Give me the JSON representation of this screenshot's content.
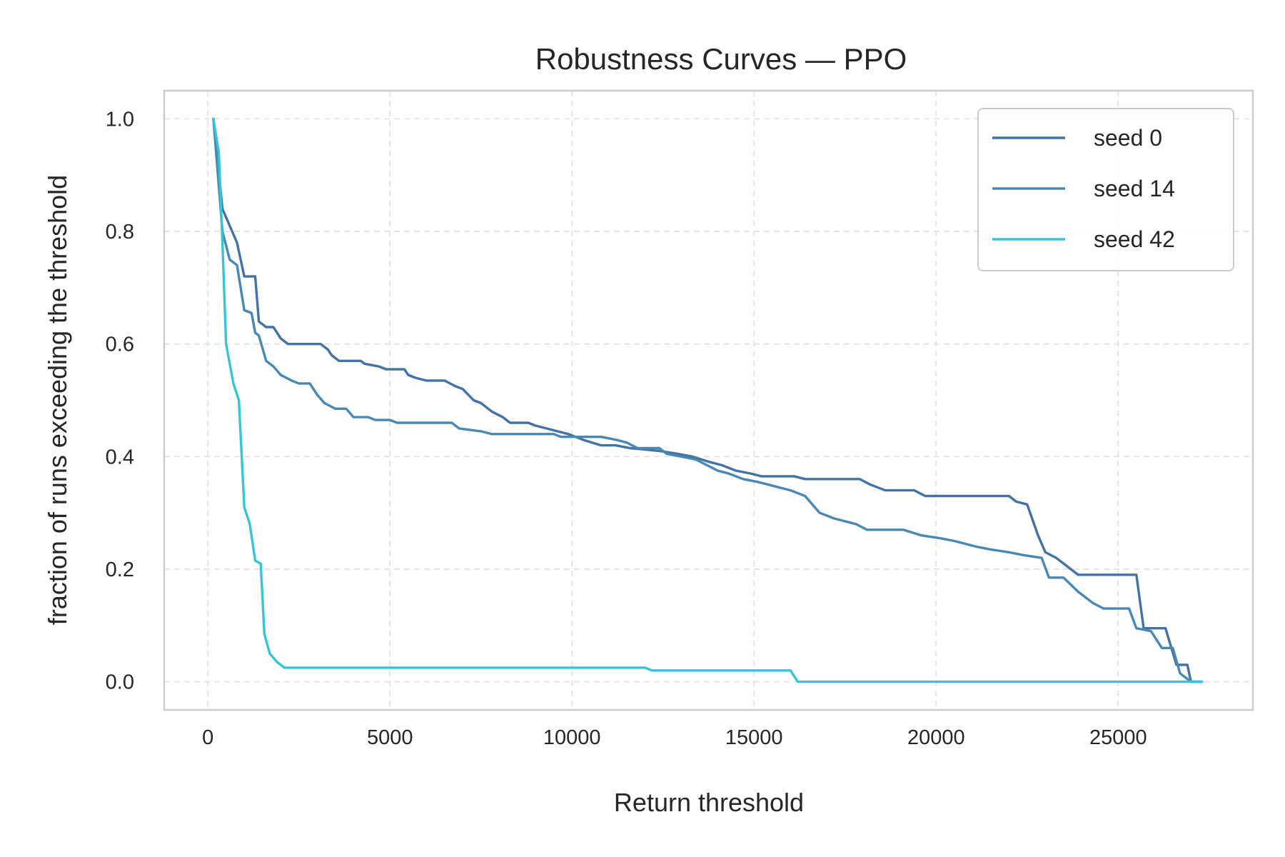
{
  "chart_data": {
    "type": "line",
    "title": "Robustness Curves — PPO",
    "xlabel": "Return threshold",
    "ylabel": "fraction of runs exceeding the threshold",
    "xlim": [
      -1200,
      28700
    ],
    "ylim": [
      -0.05,
      1.05
    ],
    "xticks": [
      0,
      5000,
      10000,
      15000,
      20000,
      25000
    ],
    "xtick_labels": [
      "0",
      "5000",
      "10000",
      "15000",
      "20000",
      "25000"
    ],
    "yticks": [
      0.0,
      0.2,
      0.4,
      0.6,
      0.8,
      1.0
    ],
    "ytick_labels": [
      "0.0",
      "0.2",
      "0.4",
      "0.6",
      "0.8",
      "1.0"
    ],
    "grid": true,
    "legend_position": "top-right",
    "series": [
      {
        "name": "seed 0",
        "color": "#4372a4",
        "points": [
          [
            150,
            1.0
          ],
          [
            400,
            0.84
          ],
          [
            800,
            0.78
          ],
          [
            1000,
            0.72
          ],
          [
            1300,
            0.72
          ],
          [
            1400,
            0.64
          ],
          [
            1600,
            0.63
          ],
          [
            1800,
            0.63
          ],
          [
            2000,
            0.61
          ],
          [
            2200,
            0.6
          ],
          [
            2800,
            0.6
          ],
          [
            3100,
            0.6
          ],
          [
            3300,
            0.59
          ],
          [
            3400,
            0.58
          ],
          [
            3600,
            0.57
          ],
          [
            4200,
            0.57
          ],
          [
            4300,
            0.565
          ],
          [
            4700,
            0.56
          ],
          [
            4900,
            0.555
          ],
          [
            5400,
            0.555
          ],
          [
            5500,
            0.545
          ],
          [
            5700,
            0.54
          ],
          [
            6000,
            0.535
          ],
          [
            6500,
            0.535
          ],
          [
            6800,
            0.525
          ],
          [
            7000,
            0.52
          ],
          [
            7300,
            0.5
          ],
          [
            7500,
            0.495
          ],
          [
            7800,
            0.48
          ],
          [
            8100,
            0.47
          ],
          [
            8300,
            0.46
          ],
          [
            8800,
            0.46
          ],
          [
            9000,
            0.455
          ],
          [
            9300,
            0.45
          ],
          [
            9600,
            0.445
          ],
          [
            9900,
            0.44
          ],
          [
            10300,
            0.43
          ],
          [
            10800,
            0.42
          ],
          [
            11200,
            0.42
          ],
          [
            11600,
            0.415
          ],
          [
            12400,
            0.41
          ],
          [
            12900,
            0.405
          ],
          [
            13300,
            0.4
          ],
          [
            13800,
            0.39
          ],
          [
            14100,
            0.385
          ],
          [
            14500,
            0.375
          ],
          [
            14900,
            0.37
          ],
          [
            15200,
            0.365
          ],
          [
            16100,
            0.365
          ],
          [
            16400,
            0.36
          ],
          [
            17900,
            0.36
          ],
          [
            18200,
            0.35
          ],
          [
            18600,
            0.34
          ],
          [
            19400,
            0.34
          ],
          [
            19700,
            0.33
          ],
          [
            22000,
            0.33
          ],
          [
            22200,
            0.32
          ],
          [
            22500,
            0.315
          ],
          [
            22800,
            0.26
          ],
          [
            23000,
            0.23
          ],
          [
            23300,
            0.22
          ],
          [
            23600,
            0.205
          ],
          [
            23900,
            0.19
          ],
          [
            25500,
            0.19
          ],
          [
            25700,
            0.095
          ],
          [
            26300,
            0.095
          ],
          [
            26600,
            0.03
          ],
          [
            26900,
            0.03
          ],
          [
            27000,
            0.0
          ],
          [
            27300,
            0.0
          ]
        ]
      },
      {
        "name": "seed 14",
        "color": "#4a88b4",
        "points": [
          [
            150,
            1.0
          ],
          [
            400,
            0.8
          ],
          [
            600,
            0.75
          ],
          [
            800,
            0.74
          ],
          [
            1000,
            0.66
          ],
          [
            1200,
            0.655
          ],
          [
            1300,
            0.62
          ],
          [
            1400,
            0.615
          ],
          [
            1600,
            0.57
          ],
          [
            1800,
            0.56
          ],
          [
            2000,
            0.545
          ],
          [
            2300,
            0.535
          ],
          [
            2500,
            0.53
          ],
          [
            2800,
            0.53
          ],
          [
            3000,
            0.51
          ],
          [
            3200,
            0.495
          ],
          [
            3500,
            0.485
          ],
          [
            3800,
            0.485
          ],
          [
            4000,
            0.47
          ],
          [
            4400,
            0.47
          ],
          [
            4600,
            0.465
          ],
          [
            5000,
            0.465
          ],
          [
            5200,
            0.46
          ],
          [
            6700,
            0.46
          ],
          [
            6900,
            0.45
          ],
          [
            7500,
            0.445
          ],
          [
            7800,
            0.44
          ],
          [
            9500,
            0.44
          ],
          [
            9700,
            0.435
          ],
          [
            10800,
            0.435
          ],
          [
            11200,
            0.43
          ],
          [
            11500,
            0.425
          ],
          [
            11800,
            0.415
          ],
          [
            12400,
            0.415
          ],
          [
            12600,
            0.405
          ],
          [
            13000,
            0.4
          ],
          [
            13400,
            0.395
          ],
          [
            13700,
            0.385
          ],
          [
            14000,
            0.375
          ],
          [
            14300,
            0.37
          ],
          [
            14700,
            0.36
          ],
          [
            15100,
            0.355
          ],
          [
            15400,
            0.35
          ],
          [
            15700,
            0.345
          ],
          [
            16000,
            0.34
          ],
          [
            16400,
            0.33
          ],
          [
            16800,
            0.3
          ],
          [
            17200,
            0.29
          ],
          [
            17800,
            0.28
          ],
          [
            18100,
            0.27
          ],
          [
            19100,
            0.27
          ],
          [
            19600,
            0.26
          ],
          [
            20100,
            0.255
          ],
          [
            20500,
            0.25
          ],
          [
            21100,
            0.24
          ],
          [
            21500,
            0.235
          ],
          [
            22000,
            0.23
          ],
          [
            22400,
            0.225
          ],
          [
            22900,
            0.22
          ],
          [
            23100,
            0.185
          ],
          [
            23500,
            0.185
          ],
          [
            23900,
            0.16
          ],
          [
            24300,
            0.14
          ],
          [
            24600,
            0.13
          ],
          [
            25300,
            0.13
          ],
          [
            25500,
            0.095
          ],
          [
            25900,
            0.09
          ],
          [
            26200,
            0.06
          ],
          [
            26500,
            0.06
          ],
          [
            26700,
            0.015
          ],
          [
            27000,
            0.0
          ],
          [
            27300,
            0.0
          ]
        ]
      },
      {
        "name": "seed 42",
        "color": "#34c6d6",
        "points": [
          [
            150,
            1.0
          ],
          [
            300,
            0.94
          ],
          [
            400,
            0.78
          ],
          [
            500,
            0.6
          ],
          [
            700,
            0.53
          ],
          [
            850,
            0.5
          ],
          [
            1000,
            0.31
          ],
          [
            1150,
            0.28
          ],
          [
            1300,
            0.215
          ],
          [
            1450,
            0.21
          ],
          [
            1550,
            0.085
          ],
          [
            1700,
            0.05
          ],
          [
            1900,
            0.035
          ],
          [
            2100,
            0.025
          ],
          [
            12000,
            0.025
          ],
          [
            12200,
            0.02
          ],
          [
            16000,
            0.02
          ],
          [
            16200,
            0.0
          ],
          [
            27300,
            0.0
          ]
        ]
      }
    ]
  }
}
